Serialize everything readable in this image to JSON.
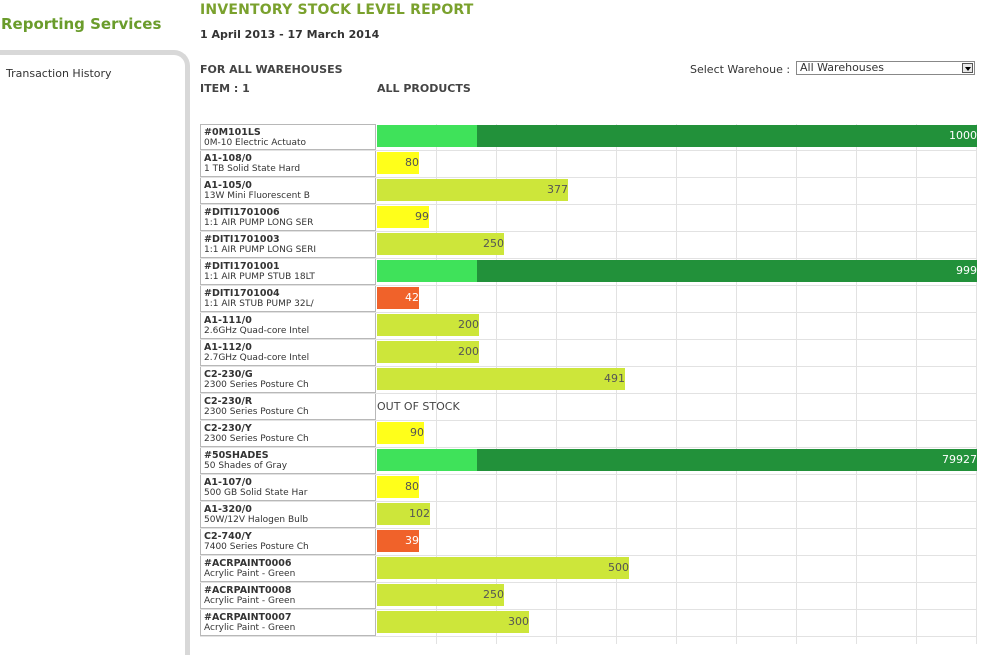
{
  "brand": "Reporting Services",
  "sidebar": {
    "items": [
      {
        "label": "Transaction History"
      }
    ]
  },
  "report": {
    "title": "INVENTORY STOCK LEVEL REPORT",
    "date_range": "1 April 2013 - 17 March 2014",
    "scope": "FOR ALL WAREHOUSES",
    "item_count": "ITEM : 1",
    "products": "ALL PRODUCTS"
  },
  "warehouse": {
    "label": "Select Warehoue :",
    "selected": "All Warehouses"
  },
  "colors": {
    "critical": "#f0622a",
    "low": "#ffff1a",
    "normal": "#cde63a",
    "high_light": "#3fe25a",
    "high_dark": "#22913a"
  },
  "chart_data": {
    "type": "bar",
    "orientation": "horizontal",
    "grid": true,
    "rows": [
      {
        "code": "#0M101LS",
        "name": "0M-10 Electric Actuato",
        "qty": 1000,
        "display": "1000",
        "status": "high"
      },
      {
        "code": "A1-108/0",
        "name": "1 TB Solid State Hard",
        "qty": 80,
        "display": "80",
        "status": "low"
      },
      {
        "code": "A1-105/0",
        "name": "13W Mini Fluorescent B",
        "qty": 377,
        "display": "377",
        "status": "normal"
      },
      {
        "code": "#DITI1701006",
        "name": "1:1 AIR PUMP LONG SER",
        "qty": 99,
        "display": "99",
        "status": "low"
      },
      {
        "code": "#DITI1701003",
        "name": "1:1 AIR PUMP LONG SERI",
        "qty": 250,
        "display": "250",
        "status": "normal"
      },
      {
        "code": "#DITI1701001",
        "name": "1:1 AIR PUMP STUB 18LT",
        "qty": 999,
        "display": "999",
        "status": "high"
      },
      {
        "code": "#DITI1701004",
        "name": "1:1 AIR STUB PUMP 32L/",
        "qty": 42,
        "display": "42",
        "status": "critical"
      },
      {
        "code": "A1-111/0",
        "name": "2.6GHz Quad-core Intel",
        "qty": 200,
        "display": "200",
        "status": "normal"
      },
      {
        "code": "A1-112/0",
        "name": "2.7GHz Quad-core Intel",
        "qty": 200,
        "display": "200",
        "status": "normal"
      },
      {
        "code": "C2-230/G",
        "name": "2300 Series Posture Ch",
        "qty": 491,
        "display": "491",
        "status": "normal"
      },
      {
        "code": "C2-230/R",
        "name": "2300 Series Posture Ch",
        "qty": 0,
        "display": "OUT OF STOCK",
        "status": "out"
      },
      {
        "code": "C2-230/Y",
        "name": "2300 Series Posture Ch",
        "qty": 90,
        "display": "90",
        "status": "low"
      },
      {
        "code": "#50SHADES",
        "name": "50 Shades of Gray",
        "qty": 79927,
        "display": "79927",
        "status": "high"
      },
      {
        "code": "A1-107/0",
        "name": "500 GB Solid State Har",
        "qty": 80,
        "display": "80",
        "status": "low"
      },
      {
        "code": "A1-320/0",
        "name": "50W/12V Halogen Bulb",
        "qty": 102,
        "display": "102",
        "status": "normal"
      },
      {
        "code": "C2-740/Y",
        "name": "7400 Series Posture Ch",
        "qty": 39,
        "display": "39",
        "status": "critical"
      },
      {
        "code": "#ACRPAINT0006",
        "name": "Acrylic Paint - Green",
        "qty": 500,
        "display": "500",
        "status": "normal"
      },
      {
        "code": "#ACRPAINT0008",
        "name": "Acrylic Paint - Green",
        "qty": 250,
        "display": "250",
        "status": "normal"
      },
      {
        "code": "#ACRPAINT0007",
        "name": "Acrylic Paint - Green",
        "qty": 300,
        "display": "300",
        "status": "normal"
      }
    ]
  }
}
